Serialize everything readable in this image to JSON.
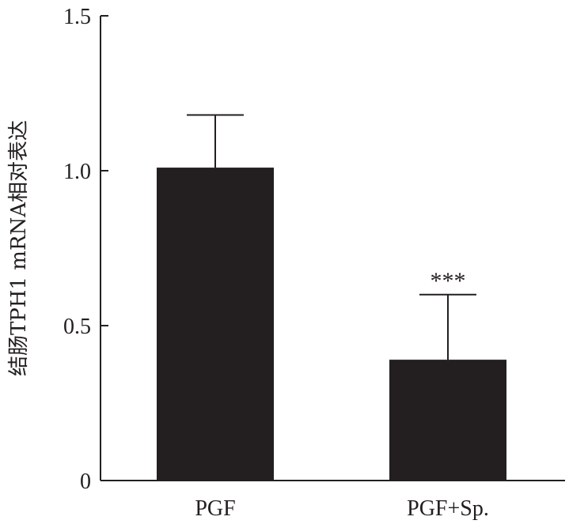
{
  "chart_data": {
    "type": "bar",
    "categories": [
      "PGF",
      "PGF+Sp."
    ],
    "values": [
      1.01,
      0.39
    ],
    "error_upper": [
      1.18,
      0.6
    ],
    "annotations": [
      "",
      "***"
    ],
    "ylabel": "结肠TPH1 mRNA相对表达",
    "xlabel": "",
    "ylim": [
      0,
      1.5
    ],
    "yticks": [
      0,
      0.5,
      1.0,
      1.5
    ],
    "ytick_labels": [
      "0",
      "0.5",
      "1.0",
      "1.5"
    ],
    "grid": false,
    "bar_color": "#231f20",
    "axis_color": "#231f20"
  }
}
